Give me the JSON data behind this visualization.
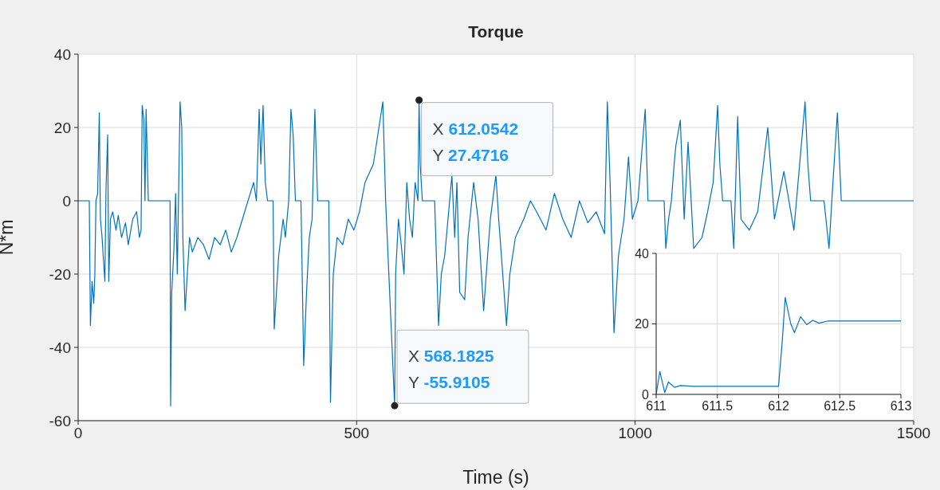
{
  "chart_data": [
    {
      "type": "line",
      "title": "Torque",
      "xlabel": "Time (s)",
      "ylabel": "N*m",
      "color": "#0072bd",
      "line_style": "solid",
      "grid": true,
      "xlim": [
        0,
        1500
      ],
      "xticks": [
        0,
        500,
        1000,
        1500
      ],
      "ylim": [
        -60,
        40
      ],
      "yticks": [
        -60,
        -40,
        -20,
        0,
        20,
        40
      ],
      "x": [
        0,
        20,
        22,
        25,
        28,
        30,
        32,
        35,
        38,
        40,
        43,
        45,
        48,
        50,
        53,
        55,
        58,
        62,
        68,
        72,
        78,
        85,
        90,
        98,
        105,
        110,
        113,
        115,
        118,
        120,
        122,
        126,
        165,
        166,
        168,
        172,
        175,
        178,
        183,
        186,
        188,
        192,
        196,
        200,
        205,
        215,
        225,
        235,
        245,
        255,
        265,
        275,
        285,
        295,
        305,
        315,
        320,
        325,
        328,
        332,
        336,
        340,
        350,
        352,
        356,
        360,
        368,
        372,
        378,
        382,
        386,
        390,
        400,
        405,
        410,
        415,
        420,
        425,
        430,
        450,
        453,
        458,
        465,
        475,
        485,
        495,
        505,
        515,
        530,
        540,
        547,
        552,
        568.1825,
        570,
        575,
        580,
        585,
        590,
        595,
        600,
        605,
        610,
        612.0542,
        614,
        618,
        640,
        647,
        652,
        658,
        664,
        671,
        676,
        680,
        685,
        694,
        700,
        710,
        718,
        728,
        735,
        740,
        750,
        755,
        769,
        775,
        785,
        800,
        812,
        823,
        840,
        855,
        870,
        885,
        900,
        915,
        930,
        945,
        950,
        955,
        962,
        970,
        980,
        988,
        995,
        1005,
        1018,
        1023,
        1052,
        1055,
        1060,
        1065,
        1070,
        1073,
        1081,
        1088,
        1095,
        1105,
        1120,
        1130,
        1140,
        1148,
        1152,
        1157,
        1172,
        1177,
        1184,
        1190,
        1205,
        1220,
        1238,
        1250,
        1267,
        1285,
        1305,
        1310,
        1315,
        1339,
        1348,
        1355,
        1363,
        1370,
        1500
      ],
      "values": [
        0,
        0,
        -34,
        -22,
        -28,
        -20,
        0,
        2,
        24,
        -5,
        -10,
        -15,
        -22,
        3,
        18,
        -22,
        -5,
        -3,
        -8,
        -4,
        -10,
        -6,
        -12,
        -5,
        -3,
        -10,
        -8,
        26,
        22,
        0,
        25,
        0,
        0,
        -56,
        -25,
        -13,
        2,
        -20,
        27,
        20,
        -10,
        -30,
        -20,
        -10,
        -14,
        -10,
        -12,
        -16,
        -10,
        -12,
        -8,
        -14,
        -10,
        -5,
        0,
        5,
        0,
        25,
        10,
        26,
        5,
        0,
        0,
        -35,
        -25,
        -15,
        -5,
        -10,
        0,
        25,
        18,
        0,
        0,
        -45,
        -25,
        -10,
        -5,
        25,
        0,
        0,
        -55,
        -20,
        -10,
        -12,
        -5,
        -8,
        -3,
        5,
        10,
        20,
        27,
        0,
        -55.9105,
        -20,
        -5,
        -12,
        -20,
        5,
        -5,
        -10,
        5,
        0,
        27.4716,
        10,
        0,
        0,
        -34,
        -20,
        -15,
        -5,
        7,
        -10,
        5,
        -25,
        -27,
        -10,
        5,
        -5,
        -30,
        -15,
        -5,
        7,
        -5,
        -34,
        -20,
        -10,
        -5,
        0,
        -3,
        -8,
        2,
        -5,
        -10,
        0,
        -6,
        -3,
        -9,
        27,
        5,
        -36,
        -15,
        -5,
        12,
        -5,
        0,
        25,
        0,
        0,
        -13,
        -5,
        0,
        10,
        15,
        22,
        -5,
        16,
        -13,
        -10,
        -3,
        5,
        26,
        10,
        0,
        0,
        -13,
        23,
        -5,
        -8,
        -3,
        20,
        -5,
        8,
        -8,
        27,
        10,
        0,
        0,
        -13,
        5,
        24,
        0,
        0
      ],
      "annotations": [
        {
          "text": "X 612.0542\nY 27.4716",
          "x": 612.0542,
          "y": 27.4716
        },
        {
          "text": "X 568.1825\nY -55.9105",
          "x": 568.1825,
          "y": -55.9105
        }
      ]
    },
    {
      "type": "line",
      "color": "#0072bd",
      "line_style": "solid",
      "grid": true,
      "xlim": [
        611,
        613
      ],
      "xticks": [
        611,
        611.5,
        612,
        612.5,
        613
      ],
      "ylim": [
        0,
        40
      ],
      "yticks": [
        0,
        20,
        40
      ],
      "x": [
        611,
        611.03,
        611.07,
        611.1,
        611.15,
        611.2,
        611.3,
        612,
        612.03,
        612.0542,
        612.1,
        612.13,
        612.18,
        612.23,
        612.28,
        612.33,
        612.4,
        613
      ],
      "values": [
        0,
        6.5,
        0.5,
        3.5,
        2,
        2.5,
        2.3,
        2.3,
        15,
        27.4716,
        20,
        17.5,
        22,
        19.8,
        21,
        20.2,
        20.8,
        20.8
      ]
    }
  ]
}
